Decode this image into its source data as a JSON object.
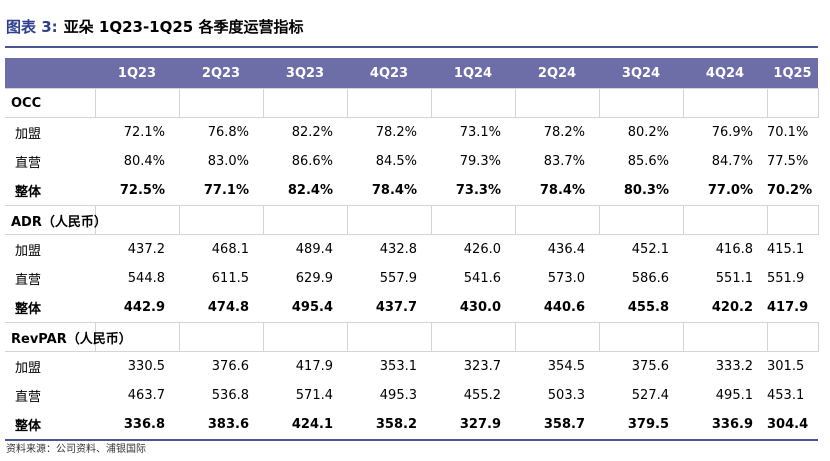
{
  "title": {
    "label": "图表 3:",
    "text": "亚朵 1Q23-1Q25 各季度运营指标"
  },
  "table": {
    "columns": [
      "",
      "1Q23",
      "2Q23",
      "3Q23",
      "4Q23",
      "1Q24",
      "2Q24",
      "3Q24",
      "4Q24",
      "1Q25"
    ],
    "sections": [
      {
        "title": "OCC",
        "rows": [
          {
            "label": "加盟",
            "values": [
              "72.1%",
              "76.8%",
              "82.2%",
              "78.2%",
              "73.1%",
              "78.2%",
              "80.2%",
              "76.9%",
              "70.1%"
            ]
          },
          {
            "label": "直营",
            "values": [
              "80.4%",
              "83.0%",
              "86.6%",
              "84.5%",
              "79.3%",
              "83.7%",
              "85.6%",
              "84.7%",
              "77.5%"
            ]
          },
          {
            "label": "整体",
            "values": [
              "72.5%",
              "77.1%",
              "82.4%",
              "78.4%",
              "73.3%",
              "78.4%",
              "80.3%",
              "77.0%",
              "70.2%"
            ]
          }
        ]
      },
      {
        "title": "ADR（人民币）",
        "rows": [
          {
            "label": "加盟",
            "values": [
              "437.2",
              "468.1",
              "489.4",
              "432.8",
              "426.0",
              "436.4",
              "452.1",
              "416.8",
              "415.1"
            ]
          },
          {
            "label": "直营",
            "values": [
              "544.8",
              "611.5",
              "629.9",
              "557.9",
              "541.6",
              "573.0",
              "586.6",
              "551.1",
              "551.9"
            ]
          },
          {
            "label": "整体",
            "values": [
              "442.9",
              "474.8",
              "495.4",
              "437.7",
              "430.0",
              "440.6",
              "455.8",
              "420.2",
              "417.9"
            ]
          }
        ]
      },
      {
        "title": "RevPAR（人民币）",
        "rows": [
          {
            "label": "加盟",
            "values": [
              "330.5",
              "376.6",
              "417.9",
              "353.1",
              "323.7",
              "354.5",
              "375.6",
              "333.2",
              "301.5"
            ]
          },
          {
            "label": "直营",
            "values": [
              "463.7",
              "536.8",
              "571.4",
              "495.3",
              "455.2",
              "503.3",
              "527.4",
              "495.1",
              "453.1"
            ]
          },
          {
            "label": "整体",
            "values": [
              "336.8",
              "383.6",
              "424.1",
              "358.2",
              "327.9",
              "358.7",
              "379.5",
              "336.9",
              "304.4"
            ]
          }
        ]
      }
    ]
  },
  "source": "资料来源：公司资料、浦银国际"
}
